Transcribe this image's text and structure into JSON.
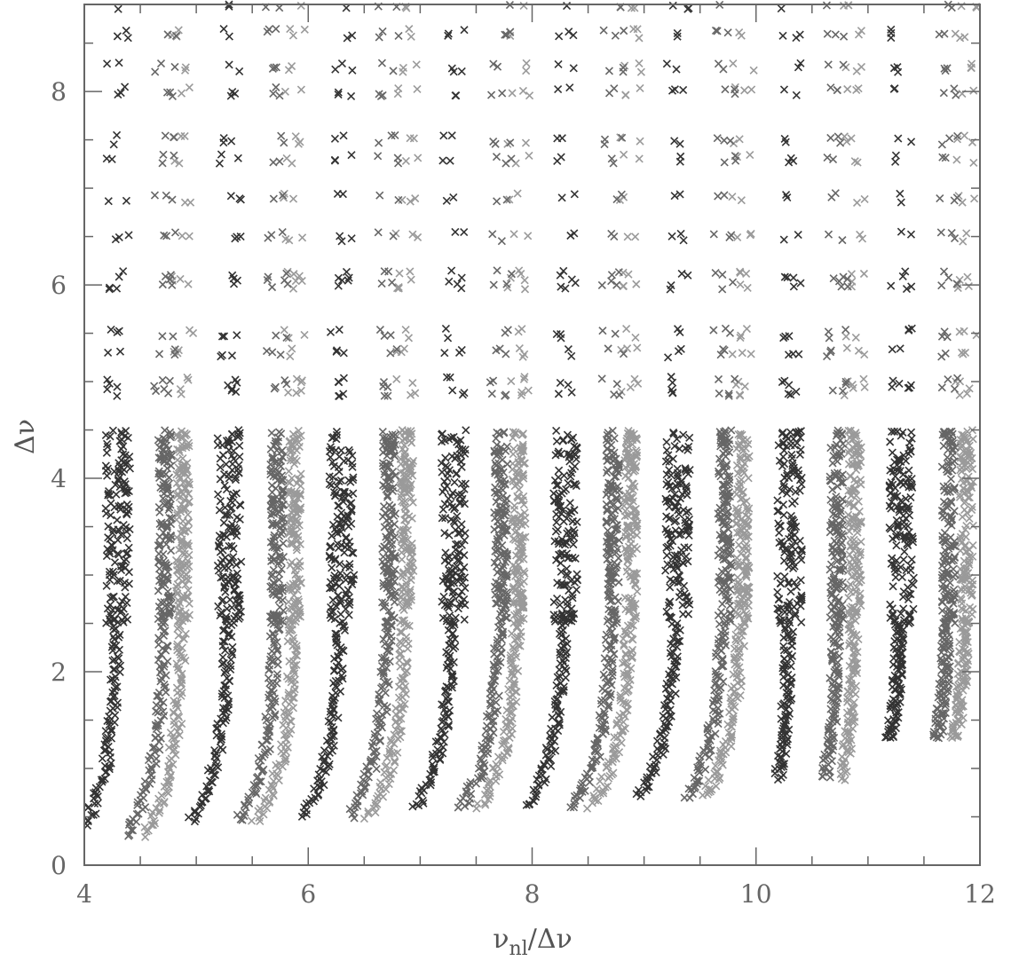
{
  "chart_data": {
    "type": "scatter",
    "marker": "x",
    "title": "",
    "xlabel": {
      "main": "ν",
      "sub": "nl",
      "tail": "/Δν"
    },
    "ylabel": "Δν",
    "xlim": [
      4,
      12
    ],
    "ylim": [
      0,
      8.9
    ],
    "grid": false,
    "x_ticks": [
      "4",
      "6",
      "8",
      "10",
      "12"
    ],
    "y_ticks": [
      "0",
      "2",
      "4",
      "6",
      "8"
    ],
    "x_major": [
      4,
      6,
      8,
      10,
      12
    ],
    "y_major": [
      0,
      2,
      4,
      6,
      8
    ],
    "x_minor_step": 0.5,
    "y_minor_step": 0.5,
    "colors": {
      "axis": "#666666",
      "l0": "#333333",
      "l1": "#666666",
      "l2": "#9a9a9a"
    },
    "series": [
      {
        "degree": 0,
        "color": "#333333",
        "order_offsets": [
          0.3,
          1.3,
          2.3,
          3.3,
          4.3,
          5.3,
          6.3,
          7.3
        ],
        "points_low": [
          [
            4.0,
            0.3
          ],
          [
            4.05,
            0.55
          ],
          [
            4.12,
            0.8
          ],
          [
            4.2,
            1.0
          ],
          [
            4.26,
            1.3
          ],
          [
            4.3,
            1.7
          ],
          [
            4.33,
            2.0
          ],
          [
            4.35,
            2.4
          ],
          [
            4.34,
            2.8
          ],
          [
            4.32,
            3.2
          ],
          [
            4.3,
            3.5
          ],
          [
            4.28,
            3.8
          ],
          [
            4.3,
            4.1
          ],
          [
            4.32,
            4.4
          ]
        ],
        "points_high": [
          [
            4.3,
            4.9
          ],
          [
            4.32,
            5.3
          ],
          [
            4.28,
            5.6
          ],
          [
            4.3,
            6.0
          ],
          [
            4.32,
            6.4
          ],
          [
            4.3,
            6.9
          ],
          [
            4.32,
            7.3
          ],
          [
            4.3,
            7.6
          ],
          [
            4.32,
            8.0
          ],
          [
            4.3,
            8.3
          ],
          [
            4.32,
            8.6
          ],
          [
            4.3,
            8.9
          ]
        ]
      },
      {
        "degree": 1,
        "color": "#666666",
        "order_offsets": [
          0.0,
          1.0,
          2.0,
          3.0,
          4.0,
          5.0,
          6.0,
          7.0
        ]
      },
      {
        "degree": 2,
        "color": "#9a9a9a",
        "order_offsets": [
          0.0,
          1.0,
          2.0,
          3.0,
          4.0,
          5.0,
          6.0,
          7.0
        ]
      }
    ],
    "ridges": {
      "l0_base_x": 4.3,
      "l1_base_x": 4.72,
      "l2_base_x": 4.88,
      "spacing": 1.0,
      "count": 8,
      "upper_y_levels": [
        4.9,
        5.0,
        5.3,
        5.5,
        6.0,
        6.1,
        6.5,
        6.9,
        7.3,
        7.5,
        8.0,
        8.25,
        8.6,
        8.9
      ],
      "dense_y_range": [
        2.5,
        4.5
      ],
      "low_y_start": [
        0.3,
        0.45,
        0.5,
        0.6,
        0.6,
        0.7,
        0.9,
        1.3
      ]
    }
  }
}
